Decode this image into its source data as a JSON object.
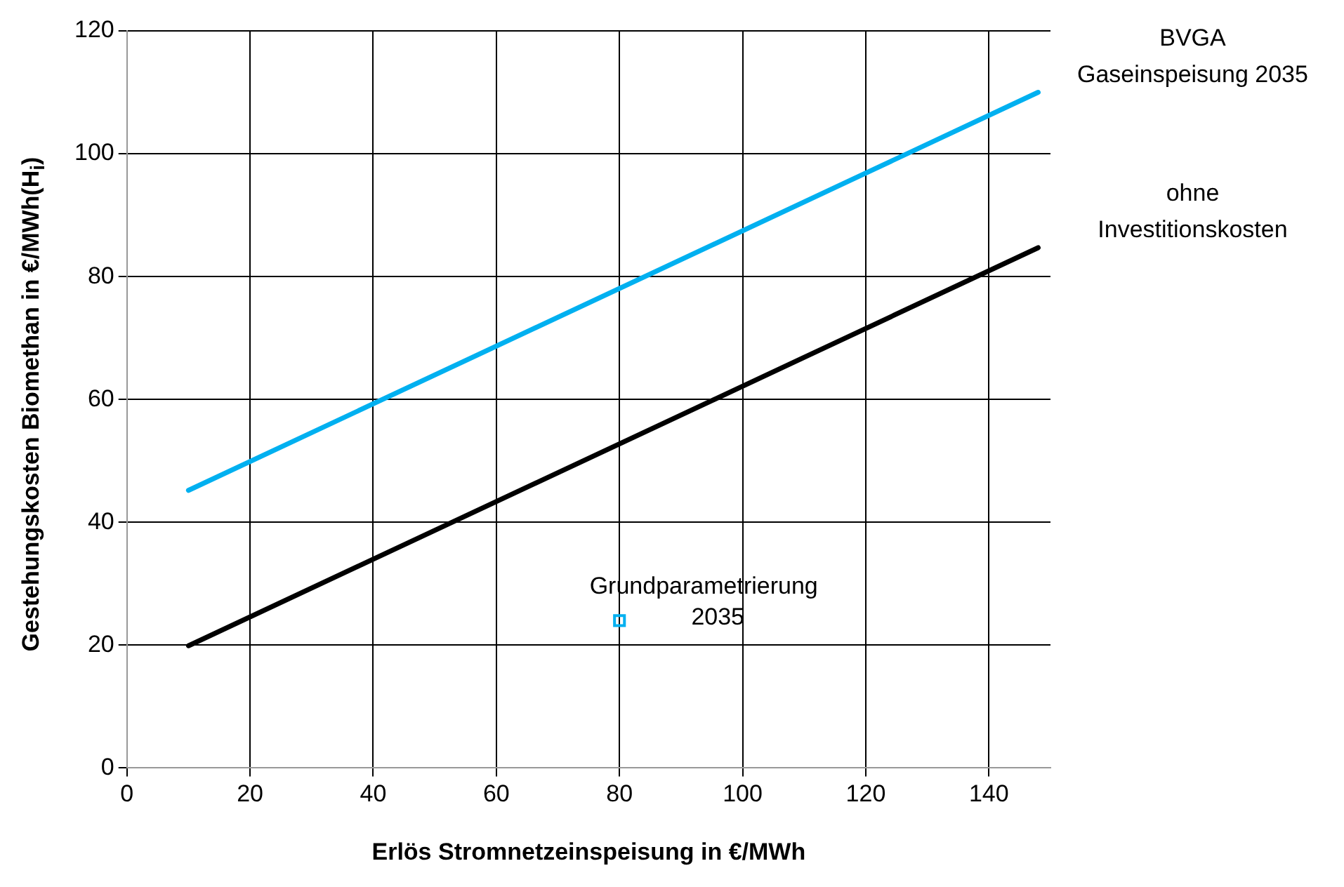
{
  "chart_data": {
    "type": "line",
    "xlabel": "Erlös Stromnetzeinspeisung in €/MWh",
    "ylabel": "Gestehungskosten Biomethan in €/MWh(H$_{i}$)",
    "xlim": [
      0,
      150
    ],
    "xticks": [
      0,
      20,
      40,
      60,
      80,
      100,
      120,
      140
    ],
    "ylim": [
      0,
      120
    ],
    "yticks": [
      0,
      20,
      40,
      60,
      80,
      100,
      120
    ],
    "grid": true,
    "legend": false,
    "series": [
      {
        "name": "BVGA Gaseinspeisung 2035",
        "color": "#00b0f0",
        "x": [
          10,
          148
        ],
        "values": [
          45.2,
          110
        ]
      },
      {
        "name": "ohne Investitionskosten",
        "color": "#000000",
        "x": [
          10,
          148
        ],
        "values": [
          19.9,
          84.7
        ]
      },
      {
        "name": "Grundparametrierung 2035",
        "type": "scatter",
        "marker": "square",
        "color": "#00b0f0",
        "x": [
          80
        ],
        "values": [
          24
        ]
      }
    ]
  }
}
